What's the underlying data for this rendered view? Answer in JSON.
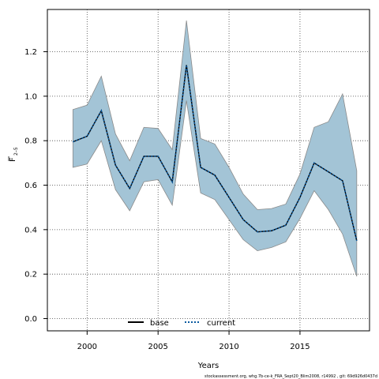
{
  "chart_data": {
    "type": "area",
    "title": "",
    "xlabel": "Years",
    "ylabel_main": "F",
    "ylabel_sub": "2–5",
    "xlim": [
      1997.2,
      2019.9
    ],
    "ylim": [
      -0.055,
      1.39
    ],
    "xticks": [
      2000,
      2005,
      2010,
      2015
    ],
    "yticks": [
      0.0,
      0.2,
      0.4,
      0.6,
      0.8,
      1.0,
      1.2
    ],
    "grid": true,
    "years": [
      1999,
      2000,
      2001,
      2002,
      2003,
      2004,
      2005,
      2006,
      2007,
      2008,
      2009,
      2010,
      2011,
      2012,
      2013,
      2014,
      2015,
      2016,
      2017,
      2018,
      2019
    ],
    "band": {
      "upper": [
        0.94,
        0.96,
        1.09,
        0.83,
        0.71,
        0.86,
        0.855,
        0.76,
        1.34,
        0.81,
        0.785,
        0.68,
        0.56,
        0.49,
        0.495,
        0.515,
        0.65,
        0.86,
        0.885,
        1.01,
        0.665
      ],
      "lower": [
        0.68,
        0.695,
        0.8,
        0.58,
        0.485,
        0.615,
        0.625,
        0.51,
        0.98,
        0.565,
        0.535,
        0.445,
        0.355,
        0.305,
        0.32,
        0.345,
        0.45,
        0.575,
        0.49,
        0.38,
        0.19
      ],
      "color": "#a3c4d6",
      "stroke": "#8a8a8a"
    },
    "series": [
      {
        "name": "base",
        "values": [
          0.795,
          0.82,
          0.935,
          0.69,
          0.585,
          0.73,
          0.73,
          0.615,
          1.14,
          0.68,
          0.645,
          0.545,
          0.445,
          0.39,
          0.395,
          0.42,
          0.545,
          0.7,
          0.66,
          0.62,
          0.35
        ],
        "color": "#000000",
        "style": "solid"
      },
      {
        "name": "current",
        "values": [
          0.795,
          0.82,
          0.935,
          0.69,
          0.585,
          0.73,
          0.73,
          0.615,
          1.14,
          0.68,
          0.645,
          0.545,
          0.445,
          0.39,
          0.395,
          0.42,
          0.545,
          0.7,
          0.66,
          0.62,
          0.35
        ],
        "color": "#0a5aa0",
        "style": "dotted"
      }
    ],
    "legend_position": "bottom-center"
  },
  "footnote": "stockassessment.org, whg.7b-ce-k_FRA_Sept20_Blim2008, r14992 , git: 69d926d0437d"
}
